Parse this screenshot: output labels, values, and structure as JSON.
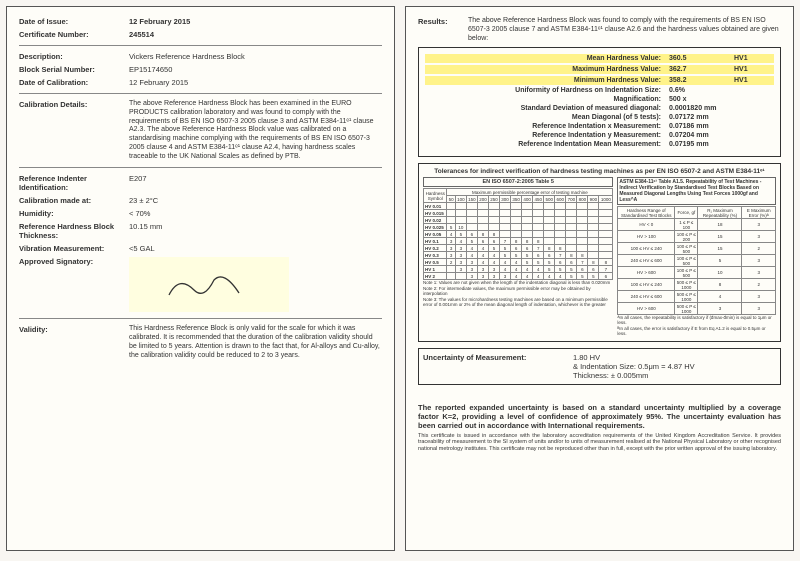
{
  "left": {
    "dateOfIssue": {
      "label": "Date of Issue:",
      "value": "12 February 2015"
    },
    "certNumber": {
      "label": "Certificate Number:",
      "value": "245514"
    },
    "description": {
      "label": "Description:",
      "value": "Vickers Reference Hardness Block"
    },
    "serial": {
      "label": "Block Serial Number:",
      "value": "EP15174650"
    },
    "dateCal": {
      "label": "Date of Calibration:",
      "value": "12 February 2015"
    },
    "calDetails": {
      "label": "Calibration Details:",
      "value": "The above Reference Hardness Block has been examined in the EURO PRODUCTS calibration laboratory and was found to comply with the requirements of BS EN ISO 6507-3 2005 clause 3 and ASTM E384-11ᵉ¹ clause A2.3. The above Reference Hardness Block value was calibrated on a standardising machine complying with the requirements of BS EN ISO 6507-3 2005 clause 4 and ASTM E384-11ᵉ¹ clause A2.4, having hardness scales traceable to the UK National Scales as defined by PTB."
    },
    "indenter": {
      "label": "Reference Indenter Identification:",
      "value": "E207"
    },
    "calAt": {
      "label": "Calibration made at:",
      "value": "23 ± 2°C"
    },
    "humidity": {
      "label": "Humidity:",
      "value": "< 70%"
    },
    "thickness": {
      "label": "Reference Hardness Block Thickness:",
      "value": "10.15 mm"
    },
    "vibration": {
      "label": "Vibration Measurement:",
      "value": "<5 GAL"
    },
    "signatory": {
      "label": "Approved Signatory:"
    },
    "validity": {
      "label": "Validity:",
      "value": "This Hardness Reference Block is only valid for the scale for which it was calibrated. It is recommended that the duration of the calibration validity should be limited to 5 years. Attention is drawn to the fact that, for Al-alloys and Cu-alloy, the calibration validity could be reduced to 2 to 3 years."
    }
  },
  "right": {
    "results": {
      "label": "Results:",
      "intro": "The above Reference Hardness Block was found to comply with the requirements of BS EN ISO 6507-3 2005 clause 7 and ASTM E384-11ᵉ¹ clause A2.6 and the hardness values obtained are given below:",
      "mean": {
        "label": "Mean Hardness Value:",
        "value": "360.5",
        "unit": "HV1"
      },
      "max": {
        "label": "Maximum Hardness Value:",
        "value": "362.7",
        "unit": "HV1"
      },
      "min": {
        "label": "Minimum Hardness Value:",
        "value": "358.2",
        "unit": "HV1"
      },
      "uniformity": {
        "label": "Uniformity of Hardness on Indentation Size:",
        "value": "0.6%"
      },
      "mag": {
        "label": "Magnification:",
        "value": "500 x"
      },
      "stddev": {
        "label": "Standard Deviation of measured diagonal:",
        "value": "0.0001820 mm"
      },
      "meanDiag": {
        "label": "Mean Diagonal (of 5 tests):",
        "value": "0.07172 mm"
      },
      "refX": {
        "label": "Reference Indentation x Measurement:",
        "value": "0.07186 mm"
      },
      "refY": {
        "label": "Reference Indentation y Measurement:",
        "value": "0.07204 mm"
      },
      "refMean": {
        "label": "Reference Indentation Mean Measurement:",
        "value": "0.07195 mm"
      }
    },
    "tolerance": {
      "title": "Tolerances for indirect verification of hardness testing machines as per EN ISO 6507-2 and ASTM E384-11ᵉ¹",
      "leftTitle": "EN ISO 6507-2:2005 Table 5",
      "rightTitle": "ASTM E384-11ᵉ¹ Table A1.5. Repeatability of Test Machines - Indirect Verification by Standardised Test Blocks Based on Measured Diagonal Lengths Using Test Forces 1000gf and Less^A",
      "leftSub": "Maximum permissible percentage error of testing machine",
      "leftSymbols": [
        "HV 0.01",
        "HV 0.015",
        "HV 0.02",
        "HV 0.025",
        "HV 0.05",
        "HV 0.1",
        "HV 0.2",
        "HV 0.3",
        "HV 0.5",
        "HV 1",
        "HV 2"
      ],
      "leftCols": [
        "50",
        "100",
        "150",
        "200",
        "250",
        "300",
        "350",
        "400",
        "450",
        "500",
        "600",
        "700",
        "800",
        "900",
        "1000"
      ],
      "rightRows": [
        [
          "HV < 0",
          "1 ≤ P ≤ 100",
          "18",
          "3"
        ],
        [
          "HV > 100",
          "100 ≤ P ≤ 200",
          "15",
          "3"
        ],
        [
          "100 ≤ HV ≤ 240",
          "100 ≤ P ≤ 500",
          "15",
          "2"
        ],
        [
          "240 ≤ HV ≤ 600",
          "100 ≤ P ≤ 500",
          "5",
          "3"
        ],
        [
          "HV > 600",
          "100 ≤ P ≤ 500",
          "10",
          "3"
        ],
        [
          "100 ≤ HV ≤ 240",
          "500 ≤ P ≤ 1000",
          "8",
          "2"
        ],
        [
          "240 ≤ HV ≤ 600",
          "500 ≤ P ≤ 1000",
          "4",
          "3"
        ],
        [
          "HV > 600",
          "500 ≤ P ≤ 1000",
          "3",
          "3"
        ]
      ],
      "rightHeaders": [
        "Hardness Range of Standardised Test Blocks",
        "Force, gf",
        "R₁ Maximum Repeatability (%)",
        "E Maximum Error (%)ᴬ"
      ],
      "note1": "Note 1: Values are not given when the length of the indentation diagonal is less than 0.020mm",
      "note2": "Note 2: For intermediate values, the maximum permissible error may be obtained by interpolation",
      "note3": "Note 3: The values for microhardness testing machines are based on a minimum permissible error of 0.001mm or 2% of the mean diagonal length of indentation, whichever is the greater",
      "noteA": "ᴬIn all cases, the repeatability is satisfactory if (d̄max-d̄min) is equal to 1μm or less.",
      "noteB": "ᴮIn all cases, the error is satisfactory if E from Eq A1.2 is equal to 0.5μm or less."
    },
    "uncertainty": {
      "label": "Uncertainty of Measurement:",
      "line1": "1.80 HV",
      "line2": "& Indentation Size: 0.5μm = 4.87 HV",
      "line3": "Thickness: ± 0.005mm"
    },
    "footerBold": "The reported expanded uncertainty is based on a standard uncertainty multiplied by a coverage factor K=2, providing a level of confidence of approximately 95%. The uncertainty evaluation has been carried out in accordance with International requirements.",
    "footerSmall": "This certificate is issued in accordance with the laboratory accreditation requirements of the United Kingdom Accreditation Service. It provides traceability of measurement to the SI system of units and/or to units of measurement realised at the National Physical Laboratory or other recognised national metrology institutes. This certificate may not be reproduced other than in full, except with the prior written approval of the issuing laboratory."
  }
}
